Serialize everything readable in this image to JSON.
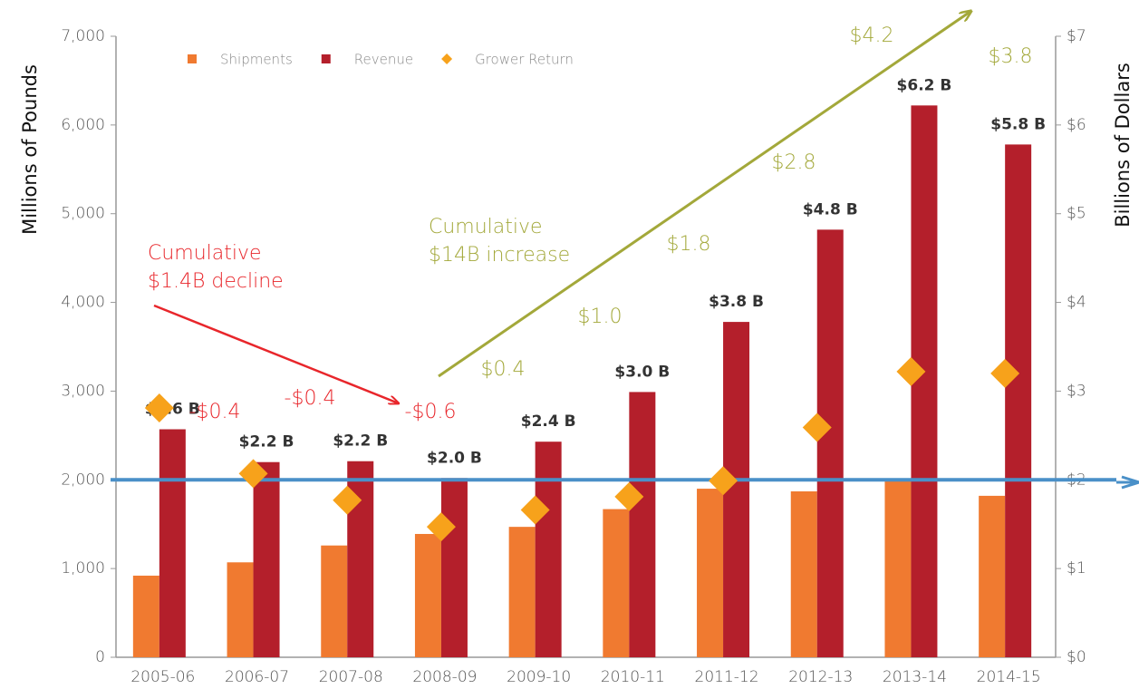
{
  "chart_data": {
    "type": "bar",
    "categories": [
      "2005-06",
      "2006-07",
      "2007-08",
      "2008-09",
      "2009-10",
      "2010-11",
      "2011-12",
      "2012-13",
      "2013-14",
      "2014-15"
    ],
    "series": [
      {
        "name": "Shipments",
        "color": "#f07a30",
        "axis": "y",
        "values": [
          920,
          1070,
          1260,
          1390,
          1470,
          1670,
          1900,
          1870,
          1990,
          1820
        ]
      },
      {
        "name": "Revenue",
        "color": "#b41f2b",
        "axis": "y2",
        "values": [
          2.57,
          2.2,
          2.21,
          2.02,
          2.43,
          2.99,
          3.78,
          4.82,
          6.22,
          5.78
        ],
        "value_labels": [
          "$2.6 B",
          "$2.2 B",
          "$2.2 B",
          "$2.0 B",
          "$2.4 B",
          "$3.0 B",
          "$3.8 B",
          "$4.8 B",
          "$6.2 B",
          "$5.8 B"
        ]
      },
      {
        "name": "Grower Return",
        "color": "#f7a21b",
        "axis": "y2",
        "marker": "diamond",
        "values": [
          2.81,
          2.07,
          1.77,
          1.47,
          1.66,
          1.81,
          1.99,
          2.59,
          3.22,
          3.2
        ]
      }
    ],
    "ylabel": "Millions of Pounds",
    "y2label": "Billions of Dollars",
    "ylim": [
      0,
      7000
    ],
    "yticks": [
      0,
      {
        "value": 1000,
        "label": "1,000"
      },
      {
        "value": 2000,
        "label": "2,000"
      },
      {
        "value": 3000,
        "label": "3,000"
      },
      {
        "value": 4000,
        "label": "4,000"
      },
      {
        "value": 5000,
        "label": "5,000"
      },
      {
        "value": 6000,
        "label": "6,000"
      },
      {
        "value": 7000,
        "label": "7,000"
      }
    ],
    "y2lim": [
      0,
      7
    ],
    "y2ticks": [
      {
        "value": 0,
        "label": "$0"
      },
      {
        "value": 1,
        "label": "$1"
      },
      {
        "value": 2,
        "label": "$2"
      },
      {
        "value": 3,
        "label": "$3"
      },
      {
        "value": 4,
        "label": "$4"
      },
      {
        "value": 5,
        "label": "$5"
      },
      {
        "value": 6,
        "label": "$6"
      },
      {
        "value": 7,
        "label": "$7"
      }
    ],
    "reference_line": {
      "value": 2,
      "axis": "y2",
      "color": "#4a90c8"
    },
    "annotations": [
      {
        "text": [
          "Cumulative",
          "$1.4B decline"
        ],
        "color": "#e8262b"
      },
      {
        "text": [
          "Cumulative",
          "$14B increase"
        ],
        "color": "#a3a83a"
      },
      {
        "text": [
          "-$0.4"
        ],
        "color": "#e8262b"
      },
      {
        "text": [
          "-$0.4"
        ],
        "color": "#e8262b"
      },
      {
        "text": [
          "-$0.6"
        ],
        "color": "#e8262b"
      },
      {
        "text": [
          "$0.4"
        ],
        "color": "#a3a83a"
      },
      {
        "text": [
          "$1.0"
        ],
        "color": "#a3a83a"
      },
      {
        "text": [
          "$1.8"
        ],
        "color": "#a3a83a"
      },
      {
        "text": [
          "$2.8"
        ],
        "color": "#a3a83a"
      },
      {
        "text": [
          "$4.2"
        ],
        "color": "#a3a83a"
      },
      {
        "text": [
          "$3.8"
        ],
        "color": "#a3a83a"
      }
    ]
  }
}
